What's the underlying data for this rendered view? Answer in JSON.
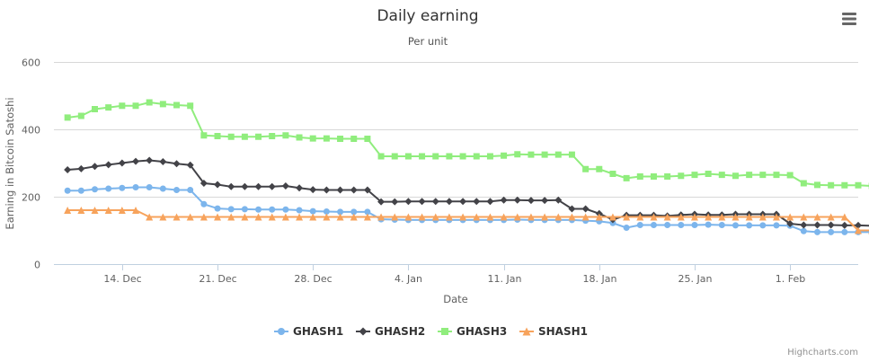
{
  "menu": {
    "icon": "hamburger-menu-icon"
  },
  "credits": "Highcharts.com",
  "chart_data": {
    "type": "line",
    "title": "Daily earning",
    "subtitle": "Per unit",
    "xlabel": "Date",
    "ylabel": "Earning in Bitcoin Satoshi",
    "ylim": [
      0,
      600
    ],
    "yticks": [
      0,
      200,
      400,
      600
    ],
    "xlim": [
      "2014-12-09",
      "2015-02-06"
    ],
    "xticks": [
      {
        "date": "2014-12-14",
        "label": "14. Dec"
      },
      {
        "date": "2014-12-21",
        "label": "21. Dec"
      },
      {
        "date": "2014-12-28",
        "label": "28. Dec"
      },
      {
        "date": "2015-01-04",
        "label": "4. Jan"
      },
      {
        "date": "2015-01-11",
        "label": "11. Jan"
      },
      {
        "date": "2015-01-18",
        "label": "18. Jan"
      },
      {
        "date": "2015-01-25",
        "label": "25. Jan"
      },
      {
        "date": "2015-02-01",
        "label": "1. Feb"
      }
    ],
    "x_start": "2014-12-10",
    "x_step_days": 1,
    "grid": true,
    "legend": "bottom-center",
    "series": [
      {
        "name": "GHASH1",
        "color": "#7cb5ec",
        "marker": "circle",
        "values": [
          218,
          218,
          222,
          224,
          226,
          228,
          228,
          224,
          220,
          220,
          178,
          165,
          163,
          163,
          162,
          162,
          162,
          160,
          157,
          156,
          155,
          155,
          155,
          133,
          132,
          131,
          131,
          131,
          131,
          131,
          131,
          131,
          131,
          132,
          131,
          131,
          131,
          131,
          129,
          127,
          122,
          108,
          116,
          116,
          116,
          116,
          116,
          117,
          116,
          115,
          115,
          115,
          115,
          114,
          98,
          95,
          95,
          95,
          95,
          95,
          94,
          94,
          93,
          93,
          93,
          93
        ]
      },
      {
        "name": "GHASH2",
        "color": "#434348",
        "marker": "diamond",
        "values": [
          280,
          283,
          290,
          295,
          300,
          305,
          308,
          304,
          298,
          294,
          240,
          236,
          230,
          230,
          230,
          230,
          232,
          226,
          221,
          220,
          220,
          220,
          220,
          185,
          185,
          186,
          186,
          186,
          186,
          186,
          186,
          186,
          190,
          190,
          189,
          189,
          190,
          164,
          164,
          150,
          132,
          145,
          145,
          145,
          143,
          146,
          148,
          146,
          146,
          148,
          148,
          148,
          148,
          120,
          116,
          116,
          116,
          115,
          115,
          114,
          114,
          114,
          114,
          114,
          113,
          112
        ]
      },
      {
        "name": "GHASH3",
        "color": "#90ed7d",
        "marker": "square",
        "values": [
          435,
          440,
          460,
          465,
          470,
          470,
          480,
          475,
          472,
          470,
          382,
          380,
          378,
          378,
          378,
          380,
          382,
          376,
          373,
          373,
          372,
          372,
          372,
          320,
          320,
          320,
          320,
          320,
          320,
          320,
          320,
          320,
          322,
          326,
          325,
          325,
          325,
          325,
          282,
          282,
          268,
          255,
          260,
          260,
          260,
          262,
          265,
          268,
          265,
          262,
          265,
          265,
          265,
          264,
          240,
          235,
          234,
          234,
          234,
          232,
          230,
          230,
          230,
          232,
          234,
          234
        ]
      },
      {
        "name": "SHASH1",
        "color": "#f7a35c",
        "marker": "triangle",
        "values": [
          160,
          160,
          160,
          160,
          160,
          160,
          140,
          140,
          140,
          140,
          140,
          140,
          140,
          140,
          140,
          140,
          140,
          140,
          140,
          140,
          140,
          140,
          140,
          140,
          140,
          140,
          140,
          140,
          140,
          140,
          140,
          140,
          140,
          140,
          140,
          140,
          140,
          140,
          140,
          140,
          140,
          140,
          140,
          140,
          140,
          140,
          140,
          140,
          140,
          140,
          140,
          140,
          140,
          140,
          140,
          140,
          140,
          140,
          100,
          100,
          100,
          100,
          100,
          100,
          100,
          100
        ]
      }
    ]
  }
}
